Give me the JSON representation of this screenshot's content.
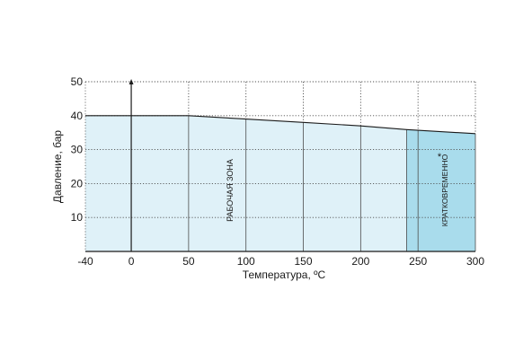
{
  "chart_data": {
    "type": "area",
    "xlabel": "Температура, ºС",
    "ylabel": "Давление, бар",
    "x_ticks": [
      "-40",
      "0",
      "50",
      "100",
      "150",
      "200",
      "250",
      "300"
    ],
    "y_ticks": [
      "10",
      "20",
      "30",
      "40",
      "50"
    ],
    "xlim": [
      -40,
      300
    ],
    "ylim": [
      0,
      50
    ],
    "grid": true,
    "series": [
      {
        "x": [
          -40,
          0,
          50,
          100,
          150,
          200,
          240,
          300
        ],
        "y": [
          40,
          40,
          40,
          39,
          38,
          37,
          35.9,
          34.7
        ]
      }
    ],
    "zones": [
      {
        "label": "РАБОЧАЯ ЗОНА",
        "x_start": -40,
        "x_end": 240,
        "color": "#dff1f8"
      },
      {
        "label": "КРАТКОВРЕМЕННО",
        "marker": "*",
        "x_start": 240,
        "x_end": 300,
        "color": "#a9dcec"
      }
    ],
    "colors": {
      "axis": "#1a1a1a",
      "grid": "#4d4d4d",
      "line": "#1a1a1a"
    }
  }
}
